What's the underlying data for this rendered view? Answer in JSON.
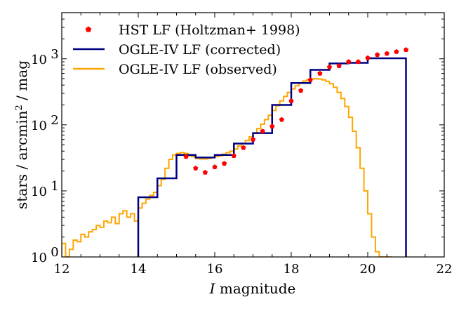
{
  "chart_data": {
    "type": "line",
    "xlabel": "I magnitude",
    "xlabel_italic_part": "I",
    "xlabel_rest": " magnitude",
    "ylabel": "stars / arcmin² / mag",
    "ylabel_parts": {
      "before": "stars / arcmin",
      "sup": "2",
      "after": " / mag"
    },
    "xlim": [
      12,
      22
    ],
    "ylim": [
      1,
      5000
    ],
    "yscale": "log",
    "x_ticks": [
      "12",
      "14",
      "16",
      "18",
      "20",
      "22"
    ],
    "y_ticks": [
      {
        "base": "10",
        "exp": "0",
        "value": 1
      },
      {
        "base": "10",
        "exp": "1",
        "value": 10
      },
      {
        "base": "10",
        "exp": "2",
        "value": 100
      },
      {
        "base": "10",
        "exp": "3",
        "value": 1000
      }
    ],
    "grid": false,
    "legend_position": "top-left",
    "colors": {
      "hst": "#ff0000",
      "corrected": "#000080",
      "observed": "#ffa500"
    },
    "series": [
      {
        "name": "HST LF (Holtzman+ 1998)",
        "style": "markers",
        "marker": "pentagon",
        "x": [
          15.25,
          15.5,
          15.75,
          16.0,
          16.25,
          16.5,
          16.75,
          17.0,
          17.25,
          17.5,
          17.75,
          18.0,
          18.25,
          18.5,
          18.75,
          19.0,
          19.25,
          19.5,
          19.75,
          20.0,
          20.25,
          20.5,
          20.75,
          21.0
        ],
        "y": [
          33,
          22,
          19,
          23,
          26,
          34,
          45,
          60,
          80,
          95,
          120,
          230,
          330,
          480,
          600,
          750,
          780,
          900,
          900,
          1030,
          1150,
          1200,
          1280,
          1370
        ]
      },
      {
        "name": "OGLE-IV LF (corrected)",
        "style": "step",
        "bin_edges": [
          14.0,
          14.5,
          15.0,
          15.5,
          16.0,
          16.5,
          17.0,
          17.5,
          18.0,
          18.5,
          19.0,
          19.5,
          20.0,
          21.0
        ],
        "values": [
          8,
          15.5,
          35,
          32,
          35,
          52,
          75,
          200,
          430,
          680,
          850,
          870,
          1020
        ]
      },
      {
        "name": "OGLE-IV LF (observed)",
        "style": "step",
        "x": [
          12.0,
          12.1,
          12.2,
          12.3,
          12.4,
          12.5,
          12.6,
          12.7,
          12.8,
          12.9,
          13.0,
          13.1,
          13.2,
          13.3,
          13.4,
          13.5,
          13.6,
          13.7,
          13.8,
          13.9,
          14.0,
          14.1,
          14.2,
          14.3,
          14.4,
          14.5,
          14.6,
          14.7,
          14.8,
          14.9,
          15.0,
          15.1,
          15.2,
          15.3,
          15.4,
          15.5,
          15.6,
          15.7,
          15.8,
          15.9,
          16.0,
          16.1,
          16.2,
          16.3,
          16.4,
          16.5,
          16.6,
          16.7,
          16.8,
          16.9,
          17.0,
          17.1,
          17.2,
          17.3,
          17.4,
          17.5,
          17.6,
          17.7,
          17.8,
          17.9,
          18.0,
          18.1,
          18.2,
          18.3,
          18.4,
          18.5,
          18.6,
          18.7,
          18.8,
          18.9,
          19.0,
          19.1,
          19.2,
          19.3,
          19.4,
          19.5,
          19.6,
          19.7,
          19.8,
          19.9,
          20.0,
          20.1,
          20.2,
          20.3,
          20.4,
          20.5
        ],
        "y": [
          1.6,
          1.0,
          1.3,
          1.8,
          1.7,
          2.2,
          2.0,
          2.4,
          2.6,
          3.0,
          2.8,
          3.5,
          3.3,
          4.0,
          3.2,
          4.5,
          5.0,
          4.0,
          4.5,
          3.5,
          5.5,
          6.5,
          7.5,
          8.5,
          9.5,
          12.0,
          15.0,
          22.0,
          30.0,
          35.0,
          37.0,
          38.0,
          37.0,
          34.0,
          33.0,
          31.0,
          30.5,
          30.5,
          31.0,
          32.0,
          33.0,
          34.0,
          36.0,
          38.0,
          40.0,
          43.0,
          48.0,
          52.0,
          58.0,
          66.0,
          75.0,
          88.0,
          102.0,
          120.0,
          140.0,
          165.0,
          195.0,
          230.0,
          270.0,
          310.0,
          350.0,
          390.0,
          430.0,
          460.0,
          480.0,
          495.0,
          500.0,
          495.0,
          480.0,
          455.0,
          420.0,
          370.0,
          310.0,
          250.0,
          190.0,
          130.0,
          80.0,
          45.0,
          22.0,
          10.0,
          4.5,
          2.0,
          1.2,
          1.0,
          1.0,
          1.0
        ]
      }
    ]
  }
}
